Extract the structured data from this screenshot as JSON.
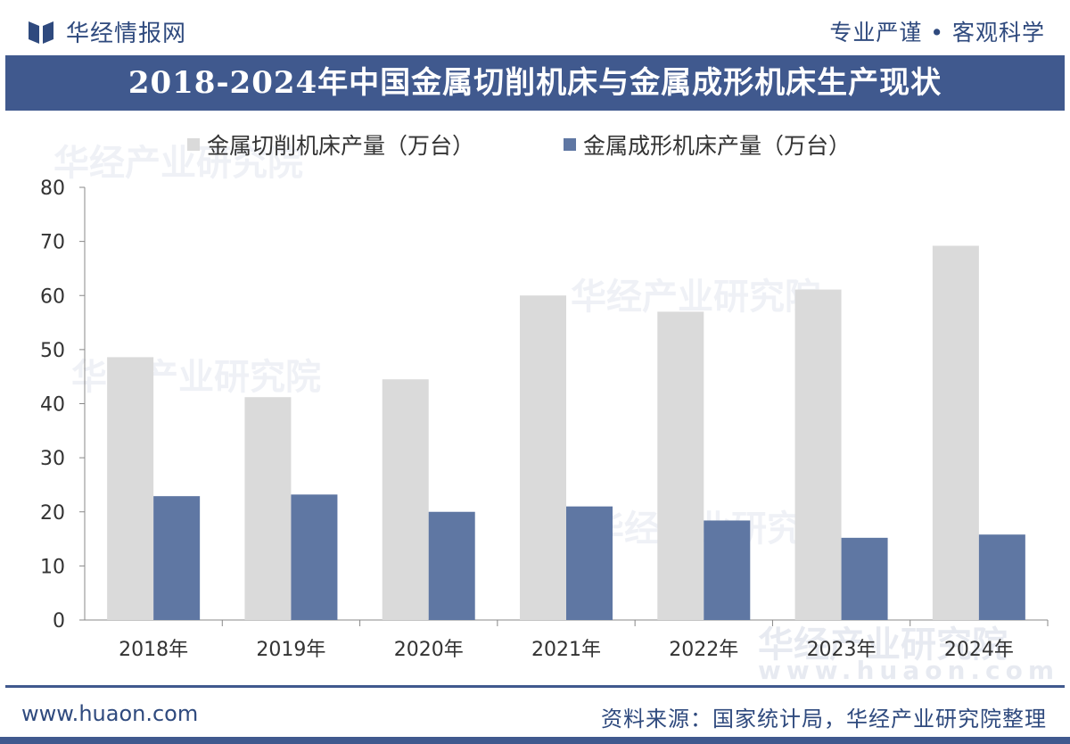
{
  "header": {
    "brand": "华经情报网",
    "tagline": "专业严谨 • 客观科学"
  },
  "title": "2018-2024年中国金属切削机床与金属成形机床生产现状",
  "footer": {
    "site": "www.huaon.com",
    "source": "资料来源：国家统计局，华经产业研究院整理"
  },
  "watermark": {
    "name": "华经产业研究院",
    "url": "www.huaon.com"
  },
  "colors": {
    "series1": "#dadada",
    "series2": "#5f77a3",
    "title_bg": "#40598e",
    "brand": "#2f4a7e"
  },
  "chart_data": {
    "type": "bar",
    "title": "2018-2024年中国金属切削机床与金属成形机床生产现状",
    "categories": [
      "2018年",
      "2019年",
      "2020年",
      "2021年",
      "2022年",
      "2023年",
      "2024年"
    ],
    "series": [
      {
        "name": "金属切削机床产量（万台）",
        "values": [
          48.6,
          41.2,
          44.5,
          60.0,
          57.0,
          61.1,
          69.2
        ]
      },
      {
        "name": "金属成形机床产量（万台）",
        "values": [
          22.9,
          23.2,
          20.0,
          21.0,
          18.4,
          15.2,
          15.8
        ]
      }
    ],
    "ylim": [
      0,
      80
    ],
    "yticks": [
      "0",
      "10",
      "20",
      "30",
      "40",
      "50",
      "60",
      "70",
      "80"
    ],
    "xlabel": "",
    "ylabel": "",
    "legend": "top-center",
    "grid": false
  }
}
